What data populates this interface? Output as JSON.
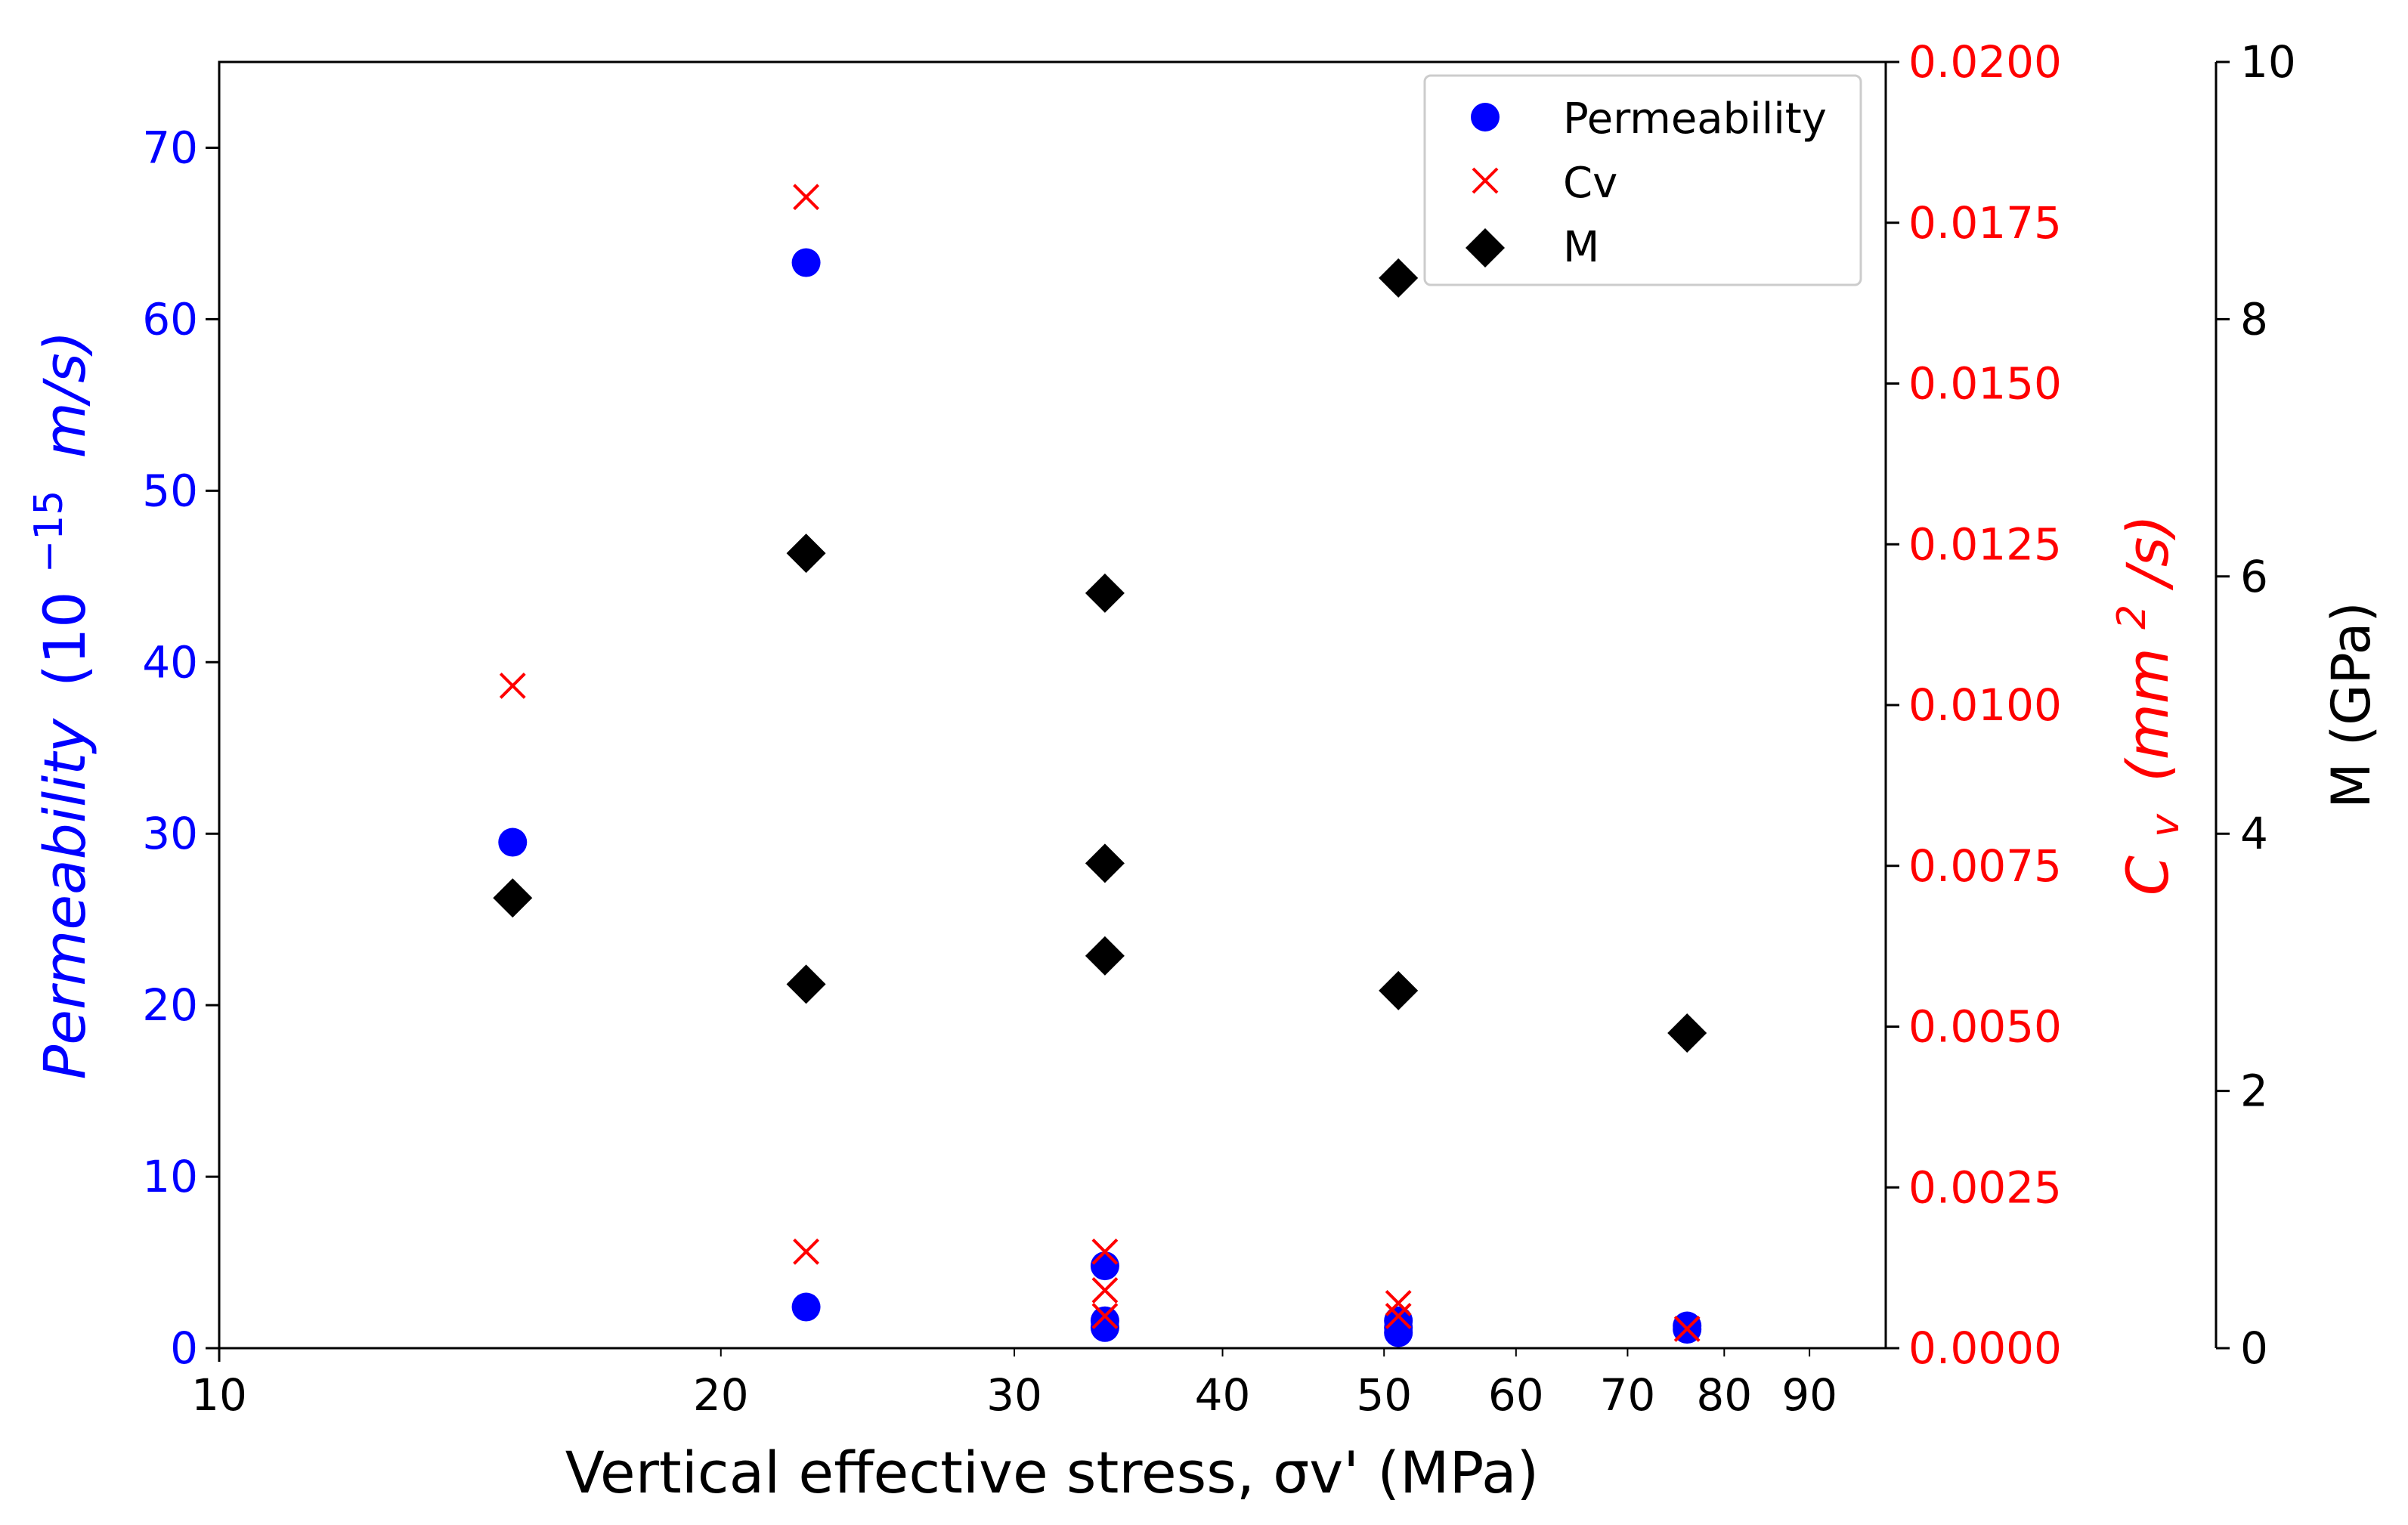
{
  "chart_data": {
    "type": "scatter",
    "x_scale": "log",
    "xlim": [
      10,
      100
    ],
    "x_ticks": [
      10,
      20,
      30,
      40,
      50,
      60,
      70,
      80,
      90
    ],
    "x_tick_labels": [
      "10",
      "20",
      "30",
      "40",
      "50",
      "60",
      "70",
      "80",
      "90"
    ],
    "xlabel": "Vertical effective stress, σv' (MPa)",
    "axes": {
      "left": {
        "label_main": "Permeability",
        "label_prefix": "(10",
        "label_exp": "−15",
        "label_unit": "m/s)",
        "color": "#0000ff",
        "ylim": [
          0,
          75
        ],
        "ticks": [
          0,
          10,
          20,
          30,
          40,
          50,
          60,
          70
        ],
        "tick_labels": [
          "0",
          "10",
          "20",
          "30",
          "40",
          "50",
          "60",
          "70"
        ]
      },
      "right1": {
        "label_main": "C",
        "label_sub": "v",
        "label_rest": "(mm",
        "label_exp": "2",
        "label_end": "/s)",
        "color": "#ff0000",
        "ylim": [
          0,
          0.02
        ],
        "ticks": [
          0,
          0.0025,
          0.005,
          0.0075,
          0.01,
          0.0125,
          0.015,
          0.0175,
          0.02
        ],
        "tick_labels": [
          "0.0000",
          "0.0025",
          "0.0050",
          "0.0075",
          "0.0100",
          "0.0125",
          "0.0150",
          "0.0175",
          "0.0200"
        ]
      },
      "right2": {
        "label": "M (GPa)",
        "color": "#000000",
        "ylim": [
          0,
          10
        ],
        "ticks": [
          0,
          2,
          4,
          6,
          8,
          10
        ],
        "tick_labels": [
          "0",
          "2",
          "4",
          "6",
          "8",
          "10"
        ]
      }
    },
    "series": [
      {
        "name": "Permeability",
        "axis": "left",
        "marker": "circle",
        "color": "#0000ff",
        "points": [
          [
            15,
            29.5
          ],
          [
            22.5,
            63.3
          ],
          [
            22.5,
            2.4
          ],
          [
            34,
            4.8
          ],
          [
            34,
            1.6
          ],
          [
            34,
            1.2
          ],
          [
            51,
            1.6
          ],
          [
            51,
            1.2
          ],
          [
            51,
            0.9
          ],
          [
            76,
            1.3
          ],
          [
            76,
            1.1
          ]
        ]
      },
      {
        "name": "Cv",
        "axis": "right1",
        "marker": "x",
        "color": "#ff0000",
        "points": [
          [
            15,
            0.0103
          ],
          [
            22.5,
            0.0179
          ],
          [
            22.5,
            0.0015
          ],
          [
            34,
            0.0015
          ],
          [
            34,
            0.0009
          ],
          [
            34,
            0.0005
          ],
          [
            51,
            0.0007
          ],
          [
            51,
            0.0005
          ],
          [
            76,
            0.0003
          ]
        ]
      },
      {
        "name": "M",
        "axis": "right2",
        "marker": "diamond",
        "color": "#000000",
        "points": [
          [
            15,
            3.5
          ],
          [
            22.5,
            6.18
          ],
          [
            22.5,
            2.83
          ],
          [
            34,
            5.87
          ],
          [
            34,
            3.77
          ],
          [
            34,
            3.05
          ],
          [
            51,
            8.32
          ],
          [
            51,
            2.78
          ],
          [
            76,
            2.45
          ]
        ]
      }
    ],
    "legend": {
      "position": "top-right",
      "entries": [
        "Permeability",
        "Cv",
        "M"
      ]
    }
  }
}
